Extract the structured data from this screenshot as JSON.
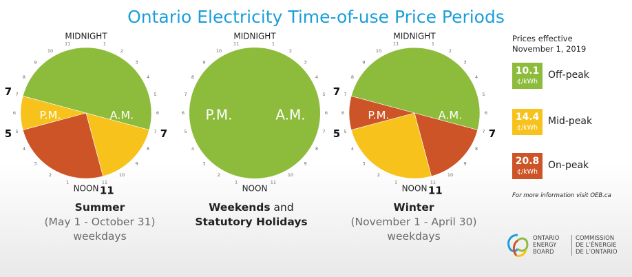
{
  "title": "Ontario Electricity Time-of-use Price Periods",
  "colors": {
    "off_peak": "#8dbb3c",
    "mid_peak": "#f6c21b",
    "on_peak": "#cc5427",
    "title": "#1a9ed9"
  },
  "chart_data": [
    {
      "type": "pie",
      "name": "Summer",
      "label_midnight": "MIDNIGHT",
      "label_noon": "NOON",
      "label_am": "A.M.",
      "label_pm": "P.M.",
      "boundary_labels": [
        {
          "text": "7",
          "hour": 7
        },
        {
          "text": "11",
          "hour": 11
        },
        {
          "text": "5",
          "hour": 17
        },
        {
          "text": "7",
          "hour": 19
        }
      ],
      "segments": [
        {
          "period": "off-peak",
          "start": 19,
          "end": 7
        },
        {
          "period": "mid-peak",
          "start": 7,
          "end": 11
        },
        {
          "period": "on-peak",
          "start": 11,
          "end": 17
        },
        {
          "period": "mid-peak",
          "start": 17,
          "end": 19
        }
      ],
      "caption": {
        "bold": "Summer",
        "line2": "(May 1 - October 31)",
        "line3": "weekdays"
      }
    },
    {
      "type": "pie",
      "name": "Weekends and Statutory Holidays",
      "label_midnight": "MIDNIGHT",
      "label_noon": "NOON",
      "label_am": "A.M.",
      "label_pm": "P.M.",
      "boundary_labels": [],
      "segments": [
        {
          "period": "off-peak",
          "start": 0,
          "end": 24
        }
      ],
      "caption": {
        "bold1": "Weekends",
        "plain": " and",
        "bold2": "Statutory Holidays"
      }
    },
    {
      "type": "pie",
      "name": "Winter",
      "label_midnight": "MIDNIGHT",
      "label_noon": "NOON",
      "label_am": "A.M.",
      "label_pm": "P.M.",
      "boundary_labels": [
        {
          "text": "7",
          "hour": 7
        },
        {
          "text": "11",
          "hour": 11
        },
        {
          "text": "5",
          "hour": 17
        },
        {
          "text": "7",
          "hour": 19
        }
      ],
      "segments": [
        {
          "period": "off-peak",
          "start": 19,
          "end": 7
        },
        {
          "period": "on-peak",
          "start": 7,
          "end": 11
        },
        {
          "period": "mid-peak",
          "start": 11,
          "end": 17
        },
        {
          "period": "on-peak",
          "start": 17,
          "end": 19
        }
      ],
      "caption": {
        "bold": "Winter",
        "line2": "(November 1 - April 30)",
        "line3": "weekdays"
      }
    }
  ],
  "hour_ticks": [
    "1",
    "2",
    "3",
    "4",
    "5",
    "6",
    "7",
    "8",
    "9",
    "10",
    "11"
  ],
  "legend": {
    "heading_line1": "Prices effective",
    "heading_line2": "November 1, 2019",
    "items": [
      {
        "price": "10.1",
        "unit": "¢/kWh",
        "label": "Off-peak",
        "color": "#8dbb3c"
      },
      {
        "price": "14.4",
        "unit": "¢/kWh",
        "label": "Mid-peak",
        "color": "#f6c21b"
      },
      {
        "price": "20.8",
        "unit": "¢/kWh",
        "label": "On-peak",
        "color": "#cc5427"
      }
    ],
    "more_info": "For more information visit OEB.ca"
  },
  "logo": {
    "en_line1": "ONTARIO",
    "en_line2": "ENERGY",
    "en_line3": "BOARD",
    "fr_line1": "COMMISSION",
    "fr_line2": "DE L’ÉNERGIE",
    "fr_line3": "DE L’ONTARIO"
  }
}
